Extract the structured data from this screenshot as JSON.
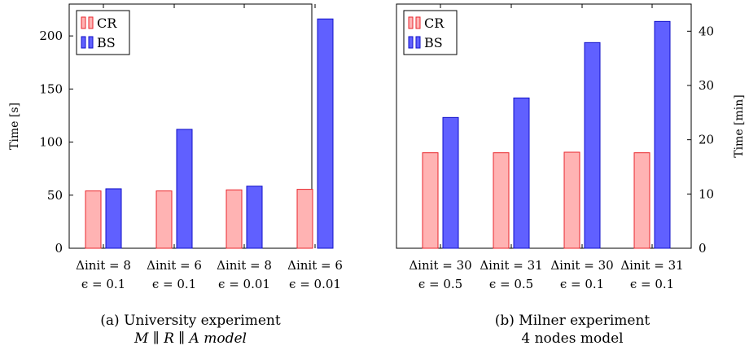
{
  "colors": {
    "cr_fill": "#ffb3b3",
    "cr_stroke": "#e8262c",
    "bs_fill": "#6060ff",
    "bs_stroke": "#1010c8"
  },
  "chart_data": [
    {
      "type": "bar",
      "title": "",
      "caption": [
        "(a) University experiment",
        "M ∥ R ∥ A model"
      ],
      "ylabel": "Time [s]",
      "ylim": [
        0,
        230
      ],
      "yticks": [
        0,
        50,
        100,
        150,
        200
      ],
      "y_axis_side": "left",
      "legend_position": "top-left",
      "categories": [
        [
          "Δinit = 8",
          "ϵ = 0.1"
        ],
        [
          "Δinit = 6",
          "ϵ = 0.1"
        ],
        [
          "Δinit = 8",
          "ϵ = 0.01"
        ],
        [
          "Δinit = 6",
          "ϵ = 0.01"
        ]
      ],
      "series": [
        {
          "name": "CR",
          "values": [
            54,
            54,
            55,
            55.5
          ]
        },
        {
          "name": "BS",
          "values": [
            56,
            112,
            58.5,
            216
          ]
        }
      ]
    },
    {
      "type": "bar",
      "title": "",
      "caption": [
        "(b) Milner experiment",
        "4 nodes model"
      ],
      "ylabel": "Time [min]",
      "ylim": [
        0,
        45
      ],
      "yticks": [
        0,
        10,
        20,
        30,
        40
      ],
      "y_axis_side": "right",
      "legend_position": "top-left",
      "categories": [
        [
          "Δinit = 30",
          "ϵ = 0.5"
        ],
        [
          "Δinit = 31",
          "ϵ = 0.5"
        ],
        [
          "Δinit = 30",
          "ϵ = 0.1"
        ],
        [
          "Δinit = 31",
          "ϵ = 0.1"
        ]
      ],
      "series": [
        {
          "name": "CR",
          "values": [
            17.6,
            17.6,
            17.7,
            17.6
          ]
        },
        {
          "name": "BS",
          "values": [
            24.1,
            27.7,
            37.9,
            41.8
          ]
        }
      ]
    }
  ]
}
